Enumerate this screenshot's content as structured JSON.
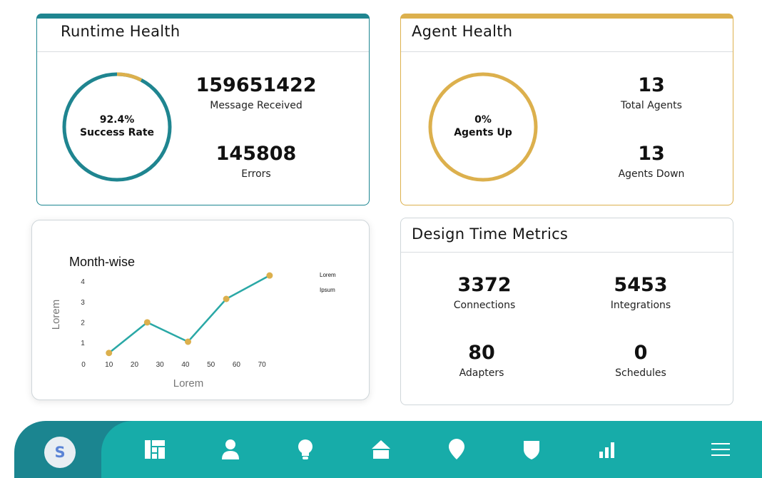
{
  "runtime_health": {
    "title": "Runtime Health",
    "success_rate_value": "92.4%",
    "success_rate_label": "Success Rate",
    "success_rate": 0.924,
    "messages_received_value": "159651422",
    "messages_received_label": "Message Received",
    "errors_value": "145808",
    "errors_label": "Errors",
    "colors": {
      "primary": "#1f8590",
      "remainder": "#dcb04d"
    }
  },
  "agent_health": {
    "title": "Agent Health",
    "agents_up_value": "0%",
    "agents_up_label": "Agents Up",
    "agents_up": 0,
    "total_agents_value": "13",
    "total_agents_label": "Total Agents",
    "agents_down_value": "13",
    "agents_down_label": "Agents Down",
    "colors": {
      "ring": "#dcb04d"
    }
  },
  "chart_data": {
    "type": "line",
    "title": "Month-wise",
    "xlabel": "Lorem",
    "ylabel": "Lorem",
    "x_ticks": [
      0,
      10,
      20,
      30,
      40,
      50,
      60,
      70
    ],
    "y_ticks": [
      1,
      2,
      3,
      4
    ],
    "xlim": [
      0,
      75
    ],
    "ylim": [
      0,
      4.2
    ],
    "legend": [
      "Lorem",
      "Ipsum"
    ],
    "legend_position": "top-right",
    "series": [
      {
        "x": [
          10,
          25,
          41,
          56,
          73
        ],
        "y": [
          0.5,
          2.0,
          1.05,
          3.15,
          4.3
        ]
      }
    ],
    "colors": {
      "line": "#2aa8a6",
      "points": "#dcb04d"
    }
  },
  "design_time_metrics": {
    "title": "Design Time Metrics",
    "connections_value": "3372",
    "connections_label": "Connections",
    "integrations_value": "5453",
    "integrations_label": "Integrations",
    "adapters_value": "80",
    "adapters_label": "Adapters",
    "schedules_value": "0",
    "schedules_label": "Schedules"
  },
  "nav": {
    "avatar_letter": "S",
    "icons": [
      "dashboard-icon",
      "user-icon",
      "bulb-icon",
      "home-icon",
      "location-icon",
      "shield-icon",
      "bar-chart-icon",
      "menu-icon"
    ],
    "colors": {
      "bar": "#17aca9",
      "active": "#1b8590"
    }
  }
}
